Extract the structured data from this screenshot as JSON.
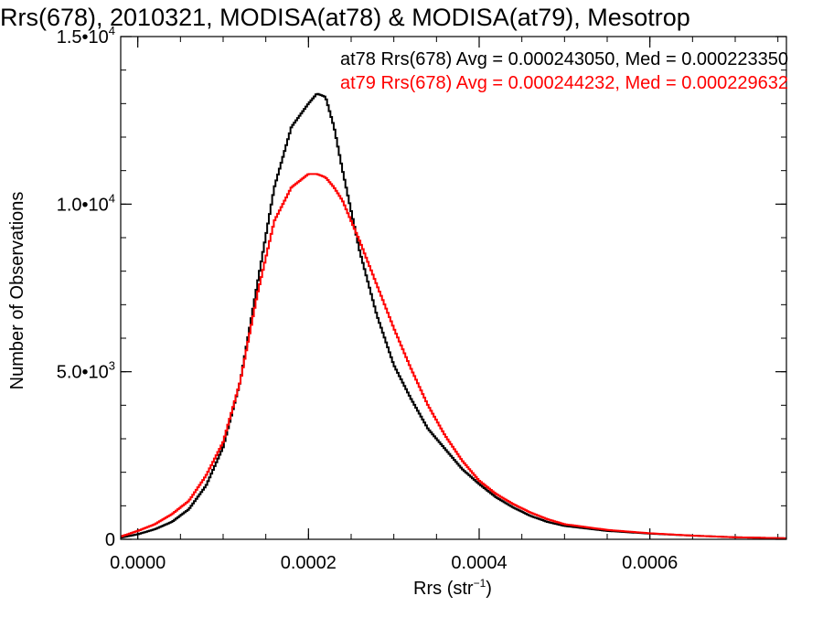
{
  "chart_data": {
    "type": "line",
    "title": "Rrs(678), 2010321, MODISA(at78) & MODISA(at79), Mesotrop",
    "xlabel_main": "Rrs (str",
    "xlabel_sup": "−1",
    "xlabel_close": ")",
    "ylabel": "Number of Observations",
    "xlim": [
      -2e-05,
      0.00076
    ],
    "ylim": [
      0,
      15000
    ],
    "x_ticks": [
      0.0,
      0.0002,
      0.0004,
      0.0006
    ],
    "x_tick_labels": [
      "0.0000",
      "0.0002",
      "0.0004",
      "0.0006"
    ],
    "y_ticks": [
      0,
      5000,
      10000,
      15000
    ],
    "y_tick_labels": [
      {
        "base": "0",
        "exp": ""
      },
      {
        "base": "5.0•10",
        "exp": "3"
      },
      {
        "base": "1.0•10",
        "exp": "4"
      },
      {
        "base": "1.5•10",
        "exp": "4"
      }
    ],
    "grid": false,
    "legend_position": "top-right",
    "series": [
      {
        "name": "at78",
        "color": "#000000",
        "stat_label": "at78 Rrs(678) Avg = 0.000243050, Med = 0.000223350",
        "x": [
          -2e-05,
          0.0,
          2e-05,
          4e-05,
          6e-05,
          8e-05,
          0.0001,
          0.00012,
          0.00014,
          0.00016,
          0.00018,
          0.0002,
          0.00021,
          0.00022,
          0.00023,
          0.00024,
          0.00025,
          0.00026,
          0.00028,
          0.0003,
          0.00032,
          0.00034,
          0.00036,
          0.00038,
          0.0004,
          0.00042,
          0.00044,
          0.00046,
          0.00048,
          0.0005,
          0.00055,
          0.0006,
          0.00065,
          0.0007,
          0.00076
        ],
        "y": [
          50,
          150,
          300,
          520,
          900,
          1600,
          2750,
          4700,
          7600,
          10500,
          12300,
          13000,
          13300,
          13200,
          12300,
          11000,
          9800,
          8600,
          6700,
          5200,
          4200,
          3300,
          2700,
          2100,
          1650,
          1250,
          950,
          700,
          520,
          400,
          250,
          170,
          110,
          60,
          30
        ]
      },
      {
        "name": "at79",
        "color": "#ff0000",
        "stat_label": "at79 Rrs(678) Avg = 0.000244232, Med = 0.000229632",
        "x": [
          -2e-05,
          0.0,
          2e-05,
          4e-05,
          6e-05,
          8e-05,
          0.0001,
          0.00012,
          0.00014,
          0.00016,
          0.00018,
          0.0002,
          0.00021,
          0.00022,
          0.00023,
          0.00024,
          0.00025,
          0.00026,
          0.00028,
          0.0003,
          0.00032,
          0.00034,
          0.00036,
          0.00038,
          0.0004,
          0.00042,
          0.00044,
          0.00046,
          0.00048,
          0.0005,
          0.00055,
          0.0006,
          0.00065,
          0.0007,
          0.00076
        ],
        "y": [
          80,
          250,
          450,
          750,
          1150,
          1900,
          2900,
          4700,
          7300,
          9500,
          10500,
          10900,
          10900,
          10800,
          10500,
          10100,
          9500,
          8900,
          7600,
          6300,
          5100,
          4000,
          3100,
          2350,
          1750,
          1350,
          1050,
          800,
          600,
          450,
          280,
          180,
          110,
          60,
          30
        ]
      }
    ]
  }
}
